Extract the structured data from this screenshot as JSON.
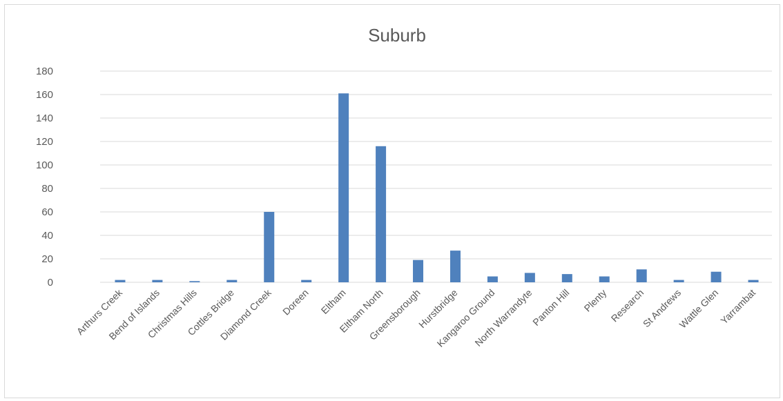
{
  "chart_data": {
    "type": "bar",
    "title": "Suburb",
    "xlabel": "",
    "ylabel": "",
    "ylim": [
      0,
      180
    ],
    "yticks": [
      0,
      20,
      40,
      60,
      80,
      100,
      120,
      140,
      160,
      180
    ],
    "grid": true,
    "legend": "none",
    "bar_color": "#4f81bd",
    "categories": [
      "Arthurs Creek",
      "Bend of Islands",
      "Christmas Hills",
      "Cottles Bridge",
      "Diamond Creek",
      "Doreen",
      "Eltham",
      "Eltham North",
      "Greensborough",
      "Hurstbridge",
      "Kangaroo Ground",
      "North Warrandyte",
      "Panton Hill",
      "Plenty",
      "Research",
      "St Andrews",
      "Wattle Glen",
      "Yarrambat"
    ],
    "values": [
      2,
      2,
      1,
      2,
      60,
      2,
      161,
      116,
      19,
      27,
      5,
      8,
      7,
      5,
      11,
      2,
      9,
      2
    ]
  }
}
